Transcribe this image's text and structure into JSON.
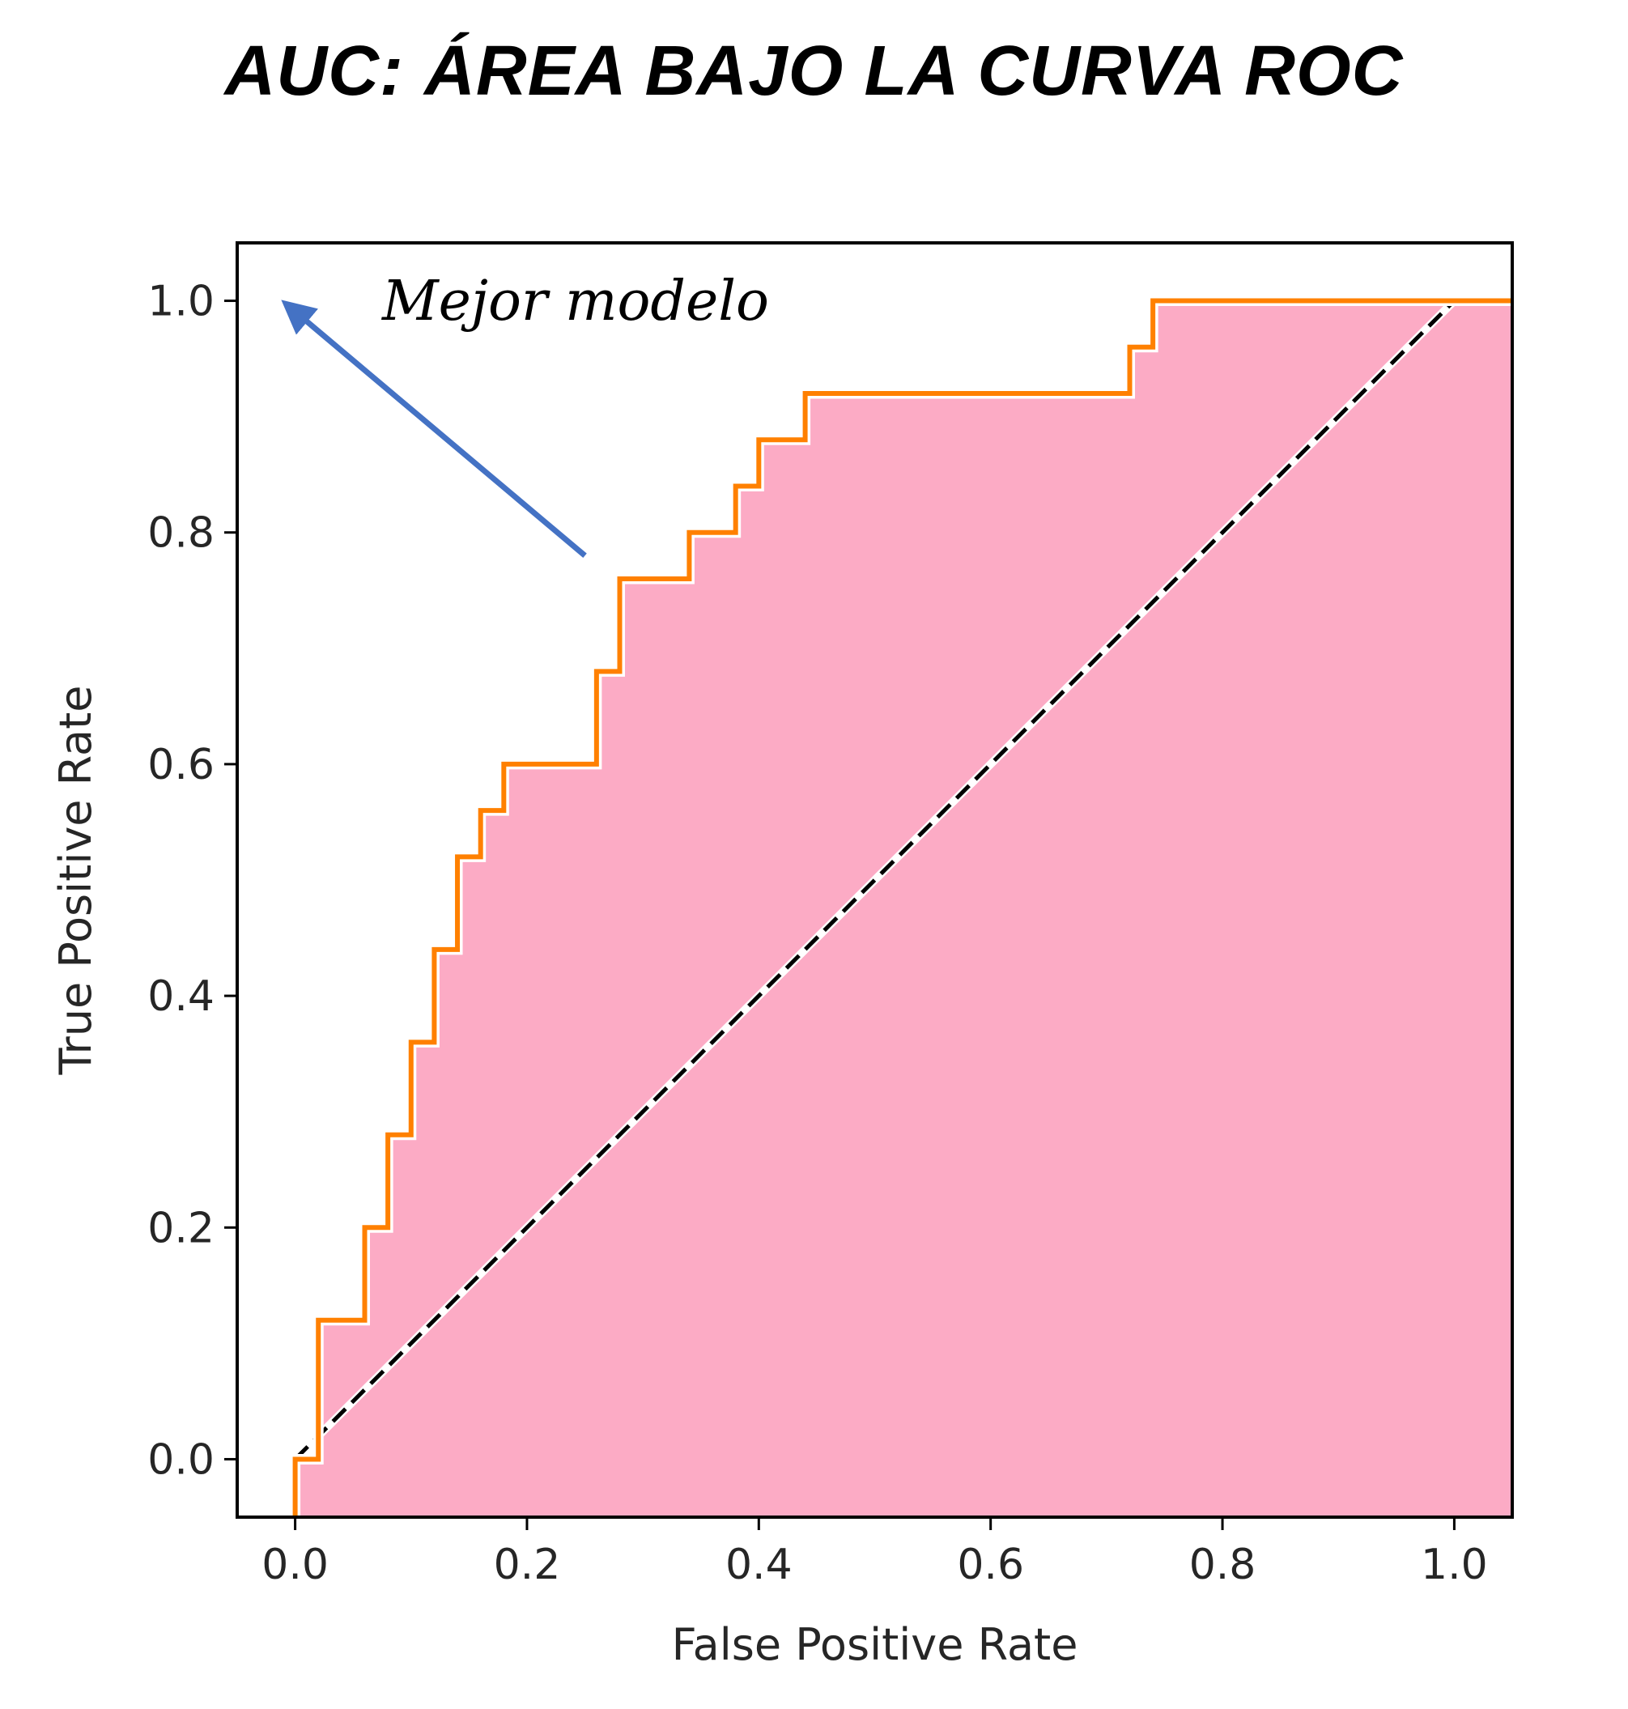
{
  "title": "AUC: ÁREA BAJO LA CURVA ROC",
  "chart_data": {
    "type": "line",
    "xlabel": "False Positive Rate",
    "ylabel": "True Positive Rate",
    "xlim": [
      -0.05,
      1.05
    ],
    "ylim": [
      -0.05,
      1.05
    ],
    "xticks": [
      "0.0",
      "0.2",
      "0.4",
      "0.6",
      "0.8",
      "1.0"
    ],
    "yticks": [
      "0.0",
      "0.2",
      "0.4",
      "0.6",
      "0.8",
      "1.0"
    ],
    "grid": false,
    "series": [
      {
        "role": "roc-curve",
        "color": "#ff8000",
        "x": [
          0.0,
          0.0,
          0.02,
          0.02,
          0.06,
          0.06,
          0.08,
          0.08,
          0.1,
          0.1,
          0.12,
          0.12,
          0.14,
          0.14,
          0.16,
          0.16,
          0.18,
          0.18,
          0.26,
          0.26,
          0.28,
          0.28,
          0.34,
          0.34,
          0.38,
          0.38,
          0.4,
          0.4,
          0.44,
          0.44,
          0.72,
          0.72,
          0.74,
          0.74,
          1.05
        ],
        "y": [
          -0.05,
          0.0,
          0.0,
          0.12,
          0.12,
          0.2,
          0.2,
          0.28,
          0.28,
          0.36,
          0.36,
          0.44,
          0.44,
          0.52,
          0.52,
          0.56,
          0.56,
          0.6,
          0.6,
          0.68,
          0.68,
          0.76,
          0.76,
          0.8,
          0.8,
          0.84,
          0.84,
          0.88,
          0.88,
          0.92,
          0.92,
          0.96,
          0.96,
          1.0,
          1.0
        ]
      },
      {
        "role": "chance-diagonal",
        "color": "#000000",
        "style": "dashed",
        "x": [
          0.0,
          1.0
        ],
        "y": [
          0.0,
          1.0
        ]
      }
    ],
    "area_fill": {
      "under": "roc-curve",
      "color": "#fcabc5"
    },
    "annotation": {
      "text": "Mejor modelo",
      "arrow_color": "#4472c4",
      "arrow_from": [
        0.25,
        0.78
      ],
      "arrow_to": [
        -0.005,
        0.995
      ]
    }
  }
}
